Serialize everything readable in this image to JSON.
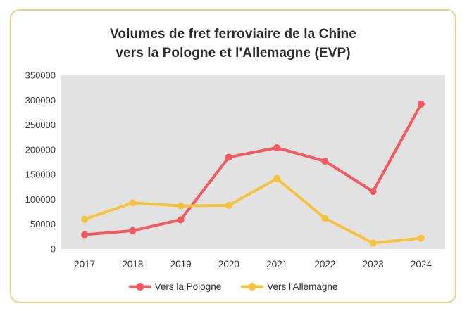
{
  "card": {
    "border_color": "#E8D088",
    "background": "#FFFFFF"
  },
  "chart_data": {
    "type": "line",
    "title": "Volumes de fret ferroviaire de la Chine vers la Pologne et l'Allemagne (EVP)",
    "title_line1": "Volumes de fret ferroviaire de la Chine",
    "title_line2": "vers la Pologne et l'Allemagne (EVP)",
    "categories": [
      "2017",
      "2018",
      "2019",
      "2020",
      "2021",
      "2022",
      "2023",
      "2024"
    ],
    "series": [
      {
        "name": "Vers la Pologne",
        "color": "#F25A60",
        "values": [
          29000,
          37000,
          59000,
          185000,
          204000,
          177000,
          116000,
          292000
        ]
      },
      {
        "name": "Vers l'Allemagne",
        "color": "#F6C33E",
        "values": [
          60000,
          93000,
          87000,
          88000,
          142000,
          62000,
          12000,
          22000
        ]
      }
    ],
    "ylim": [
      0,
      350000
    ],
    "ytick_step": 50000,
    "yticks": [
      0,
      50000,
      100000,
      150000,
      200000,
      250000,
      300000,
      350000
    ],
    "grid": false,
    "marker": "circle",
    "legend_position": "bottom",
    "plot_background": "#E2E2E2",
    "axis_text_color": "#3C3C3C"
  }
}
